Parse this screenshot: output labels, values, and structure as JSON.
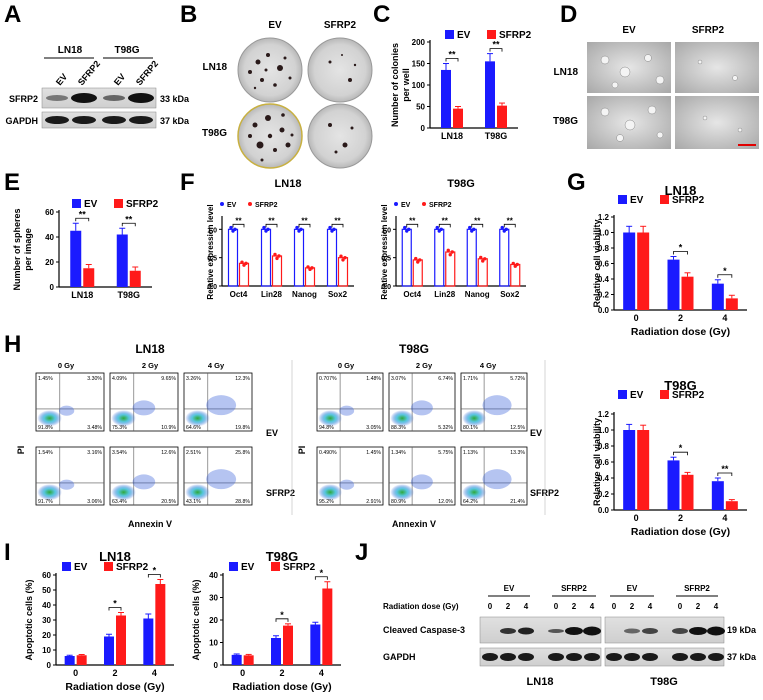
{
  "colors": {
    "ev": "#1a1aff",
    "sfrp2": "#ff1a1a",
    "blot_bg": "#d8d8d8",
    "plate": "#c9c9c9"
  },
  "panel_letters": {
    "a": "A",
    "b": "B",
    "c": "C",
    "d": "D",
    "e": "E",
    "f": "F",
    "g": "G",
    "h": "H",
    "i": "I",
    "j": "J"
  },
  "panel_a": {
    "cells": [
      "LN18",
      "T98G"
    ],
    "lanes": [
      "EV",
      "SFRP2",
      "EV",
      "SFRP2"
    ],
    "rows": [
      {
        "protein": "SFRP2",
        "size": "33 kDa"
      },
      {
        "protein": "GAPDH",
        "size": "37 kDa"
      }
    ]
  },
  "panel_b": {
    "cols": [
      "EV",
      "SFRP2"
    ],
    "rows": [
      "LN18",
      "T98G"
    ]
  },
  "panel_d": {
    "cols": [
      "EV",
      "SFRP2"
    ],
    "rows": [
      "LN18",
      "T98G"
    ]
  },
  "panel_h": {
    "ln18": {
      "title": "LN18",
      "doses": [
        "0 Gy",
        "2 Gy",
        "4 Gy"
      ],
      "groups": [
        "EV",
        "SFRP2"
      ],
      "xlabel": "Annexin V",
      "ylabel": "PI",
      "quadrants": [
        [
          "1.45%",
          "3.30%",
          "91.8%",
          "3.48%"
        ],
        [
          "4.09%",
          "9.65%",
          "75.3%",
          "10.9%"
        ],
        [
          "3.26%",
          "12.3%",
          "64.6%",
          "19.8%"
        ],
        [
          "1.54%",
          "3.16%",
          "91.7%",
          "3.06%"
        ],
        [
          "3.54%",
          "12.6%",
          "63.4%",
          "20.5%"
        ],
        [
          "2.51%",
          "25.8%",
          "43.1%",
          "28.8%"
        ]
      ]
    },
    "t98g": {
      "title": "T98G",
      "doses": [
        "0 Gy",
        "2 Gy",
        "4 Gy"
      ],
      "groups": [
        "EV",
        "SFRP2"
      ],
      "xlabel": "Annexin V",
      "ylabel": "PI",
      "quadrants": [
        [
          "0.707%",
          "1.48%",
          "94.8%",
          "3.05%"
        ],
        [
          "3.07%",
          "6.74%",
          "88.3%",
          "5.32%"
        ],
        [
          "1.71%",
          "5.72%",
          "80.1%",
          "12.5%"
        ],
        [
          "0.490%",
          "1.45%",
          "95.2%",
          "2.91%"
        ],
        [
          "1.34%",
          "5.75%",
          "80.9%",
          "12.0%"
        ],
        [
          "1.13%",
          "13.3%",
          "64.2%",
          "21.4%"
        ]
      ]
    }
  },
  "panel_j": {
    "groups": [
      "EV",
      "SFRP2"
    ],
    "dose_label": "Radiation dose (Gy)",
    "doses": [
      "0",
      "2",
      "4"
    ],
    "rows": [
      {
        "protein": "Cleaved Caspase-3",
        "size": "19 kDa"
      },
      {
        "protein": "GAPDH",
        "size": "37 kDa"
      }
    ],
    "cells": [
      "LN18",
      "T98G"
    ]
  },
  "chart_data": [
    {
      "id": "C",
      "type": "bar",
      "title": "",
      "categories": [
        "LN18",
        "T98G"
      ],
      "series": [
        {
          "name": "EV",
          "values": [
            135,
            155
          ],
          "errors": [
            15,
            18
          ]
        },
        {
          "name": "SFRP2",
          "values": [
            45,
            52
          ],
          "errors": [
            5,
            6
          ]
        }
      ],
      "ylabel": "Number of colonies\nper well",
      "xlabel": "",
      "ylim": [
        0,
        200
      ],
      "yticks": [
        "0",
        "50",
        "100",
        "150",
        "200"
      ],
      "sig": [
        "**",
        "**"
      ]
    },
    {
      "id": "E",
      "type": "bar",
      "title": "",
      "categories": [
        "LN18",
        "T98G"
      ],
      "series": [
        {
          "name": "EV",
          "values": [
            45,
            42
          ],
          "errors": [
            6,
            5
          ]
        },
        {
          "name": "SFRP2",
          "values": [
            15,
            13
          ],
          "errors": [
            3,
            3
          ]
        }
      ],
      "ylabel": "Number of spheres\nper image",
      "xlabel": "",
      "ylim": [
        0,
        60
      ],
      "yticks": [
        "0",
        "20",
        "40",
        "60"
      ],
      "sig": [
        "**",
        "**"
      ]
    },
    {
      "id": "F1",
      "type": "bar",
      "title": "LN18",
      "categories": [
        "Oct4",
        "Lin28",
        "Nanog",
        "Sox2"
      ],
      "series": [
        {
          "name": "EV",
          "values": [
            1.0,
            1.0,
            1.0,
            1.0
          ]
        },
        {
          "name": "SFRP2",
          "values": [
            0.4,
            0.53,
            0.32,
            0.5
          ]
        }
      ],
      "ylabel": "Relative expression level",
      "xlabel": "",
      "ylim": [
        0,
        1.2
      ],
      "yticks": [
        "0.0",
        "0.5",
        "1.0"
      ],
      "sig": [
        "**",
        "**",
        "**",
        "**"
      ]
    },
    {
      "id": "F2",
      "type": "bar",
      "title": "T98G",
      "categories": [
        "Oct4",
        "Lin28",
        "Nanog",
        "Sox2"
      ],
      "series": [
        {
          "name": "EV",
          "values": [
            1.0,
            1.0,
            1.0,
            1.0
          ]
        },
        {
          "name": "SFRP2",
          "values": [
            0.46,
            0.6,
            0.48,
            0.38
          ]
        }
      ],
      "ylabel": "Relative expression level",
      "xlabel": "",
      "ylim": [
        0,
        1.2
      ],
      "yticks": [
        "0.0",
        "0.5",
        "1.0"
      ],
      "sig": [
        "**",
        "**",
        "**",
        "**"
      ]
    },
    {
      "id": "G1",
      "type": "bar",
      "title": "LN18",
      "categories": [
        "0",
        "2",
        "4"
      ],
      "series": [
        {
          "name": "EV",
          "values": [
            1.0,
            0.65,
            0.34
          ],
          "errors": [
            0.08,
            0.04,
            0.05
          ]
        },
        {
          "name": "SFRP2",
          "values": [
            1.0,
            0.43,
            0.15
          ],
          "errors": [
            0.08,
            0.05,
            0.04
          ]
        }
      ],
      "ylabel": "Relative cell viability",
      "xlabel": "Radiation dose (Gy)",
      "ylim": [
        0,
        1.2
      ],
      "yticks": [
        "0.0",
        "0.2",
        "0.4",
        "0.6",
        "0.8",
        "1.0",
        "1.2"
      ],
      "sig": [
        "",
        "*",
        "*"
      ]
    },
    {
      "id": "G2",
      "type": "bar",
      "title": "T98G",
      "categories": [
        "0",
        "2",
        "4"
      ],
      "series": [
        {
          "name": "EV",
          "values": [
            1.0,
            0.62,
            0.36
          ],
          "errors": [
            0.07,
            0.04,
            0.04
          ]
        },
        {
          "name": "SFRP2",
          "values": [
            1.0,
            0.44,
            0.11
          ],
          "errors": [
            0.06,
            0.03,
            0.02
          ]
        }
      ],
      "ylabel": "Relative cell viability",
      "xlabel": "Radiation dose (Gy)",
      "ylim": [
        0,
        1.2
      ],
      "yticks": [
        "0.0",
        "0.2",
        "0.4",
        "0.6",
        "0.8",
        "1.0",
        "1.2"
      ],
      "sig": [
        "",
        "*",
        "**"
      ]
    },
    {
      "id": "I1",
      "type": "bar",
      "title": "LN18",
      "categories": [
        "0",
        "2",
        "4"
      ],
      "series": [
        {
          "name": "EV",
          "values": [
            6,
            19,
            31
          ],
          "errors": [
            0.5,
            1.5,
            3
          ]
        },
        {
          "name": "SFRP2",
          "values": [
            6.5,
            33,
            54
          ],
          "errors": [
            0.5,
            2,
            3
          ]
        }
      ],
      "ylabel": "Apoptotic cells (%)",
      "xlabel": "Radiation dose (Gy)",
      "ylim": [
        0,
        60
      ],
      "yticks": [
        "0",
        "10",
        "20",
        "30",
        "40",
        "50",
        "60"
      ],
      "sig": [
        "",
        "*",
        "*"
      ]
    },
    {
      "id": "I2",
      "type": "bar",
      "title": "T98G",
      "categories": [
        "0",
        "2",
        "4"
      ],
      "series": [
        {
          "name": "EV",
          "values": [
            4.5,
            12,
            18
          ],
          "errors": [
            0.4,
            1,
            1
          ]
        },
        {
          "name": "SFRP2",
          "values": [
            4.3,
            17.5,
            34
          ],
          "errors": [
            0.4,
            0.8,
            3
          ]
        }
      ],
      "ylabel": "Apoptotic cells (%)",
      "xlabel": "Radiation dose (Gy)",
      "ylim": [
        0,
        40
      ],
      "yticks": [
        "0",
        "10",
        "20",
        "30",
        "40"
      ],
      "sig": [
        "",
        "*",
        "*"
      ]
    }
  ]
}
